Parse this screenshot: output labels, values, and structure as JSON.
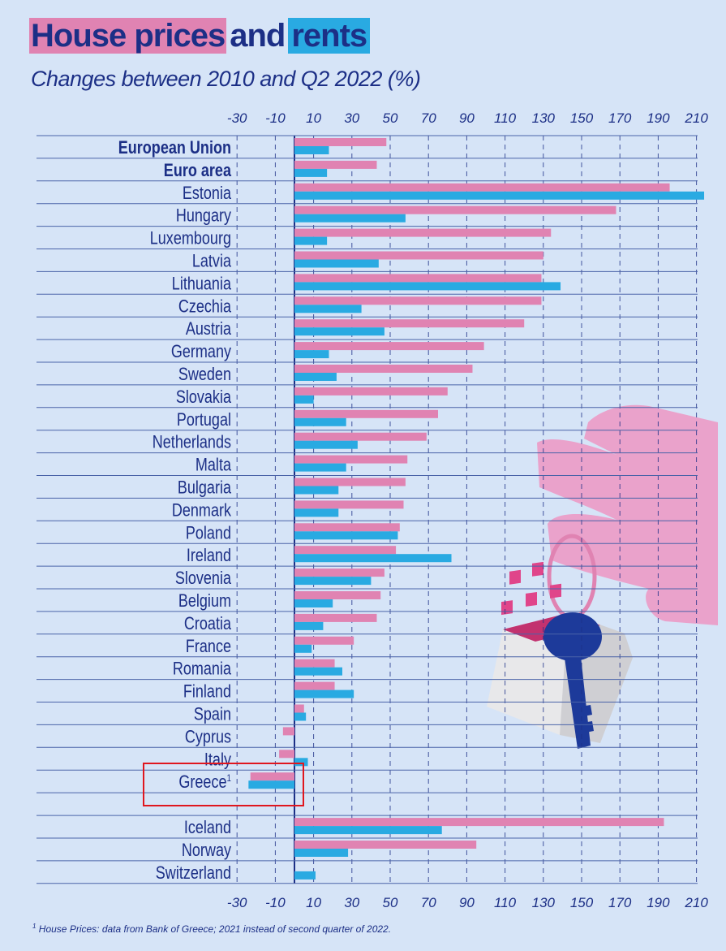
{
  "title": {
    "part1": "House prices",
    "part2": "and",
    "part3": "rents"
  },
  "subtitle": "Changes between 2010 and Q2 2022 (%)",
  "footnote": {
    "mark": "1",
    "text": "House Prices: data from Bank of Greece; 2021 instead of second quarter of 2022."
  },
  "colors": {
    "house_prices": "#e083b2",
    "rents": "#29aae2",
    "axis": "#1c2f86",
    "background": "#d6e4f7"
  },
  "chart_data": {
    "type": "bar",
    "orientation": "horizontal",
    "title": "House prices and rents",
    "subtitle": "Changes between 2010 and Q2 2022 (%)",
    "xlim": [
      -30,
      215
    ],
    "ticks": [
      "-30",
      "-10",
      "10",
      "30",
      "50",
      "70",
      "90",
      "110",
      "130",
      "150",
      "170",
      "190",
      "210"
    ],
    "tick_values": [
      -30,
      -10,
      10,
      30,
      50,
      70,
      90,
      110,
      130,
      150,
      170,
      190,
      210
    ],
    "grid": true,
    "categories": [
      "European Union",
      "Euro area",
      "Estonia",
      "Hungary",
      "Luxembourg",
      "Latvia",
      "Lithuania",
      "Czechia",
      "Austria",
      "Germany",
      "Sweden",
      "Slovakia",
      "Portugal",
      "Netherlands",
      "Malta",
      "Bulgaria",
      "Denmark",
      "Poland",
      "Ireland",
      "Slovenia",
      "Belgium",
      "Croatia",
      "France",
      "Romania",
      "Finland",
      "Spain",
      "Cyprus",
      "Italy",
      "Greece",
      "Iceland",
      "Norway",
      "Switzerland"
    ],
    "bold_categories": [
      "European Union",
      "Euro area"
    ],
    "superscripts": {
      "Greece": "1"
    },
    "series": [
      {
        "key": "house_prices",
        "values": [
          48,
          43,
          196,
          168,
          134,
          130,
          129,
          129,
          120,
          99,
          93,
          80,
          75,
          69,
          59,
          58,
          57,
          55,
          53,
          47,
          45,
          43,
          31,
          21,
          21,
          5,
          -6,
          -8,
          -23,
          193,
          95,
          null
        ]
      },
      {
        "key": "rents",
        "values": [
          18,
          17,
          214,
          58,
          17,
          44,
          139,
          35,
          47,
          18,
          22,
          10,
          27,
          33,
          27,
          23,
          23,
          54,
          82,
          40,
          20,
          15,
          9,
          25,
          31,
          6,
          null,
          7,
          -24,
          77,
          28,
          11
        ]
      }
    ]
  }
}
